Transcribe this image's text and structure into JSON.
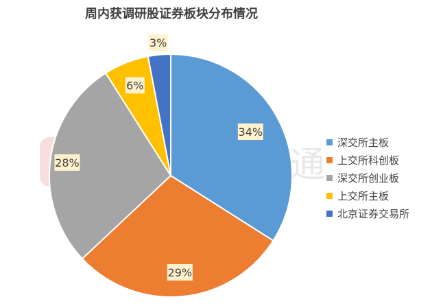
{
  "watermark": {
    "text": "财联社股市通"
  },
  "chart_data": {
    "type": "pie",
    "title": "周内获调研股证券板块分布情况",
    "categories": [
      "深交所主板",
      "上交所科创板",
      "深交所创业板",
      "上交所主板",
      "北京证券交易所"
    ],
    "values": [
      34,
      29,
      28,
      6,
      3
    ],
    "labels": [
      "34%",
      "29%",
      "28%",
      "6%",
      "3%"
    ],
    "colors": [
      "#5B9BD5",
      "#ED7D31",
      "#A5A5A5",
      "#FFC000",
      "#4472C4"
    ],
    "start": "12 o'clock, clockwise",
    "legend": "right"
  }
}
